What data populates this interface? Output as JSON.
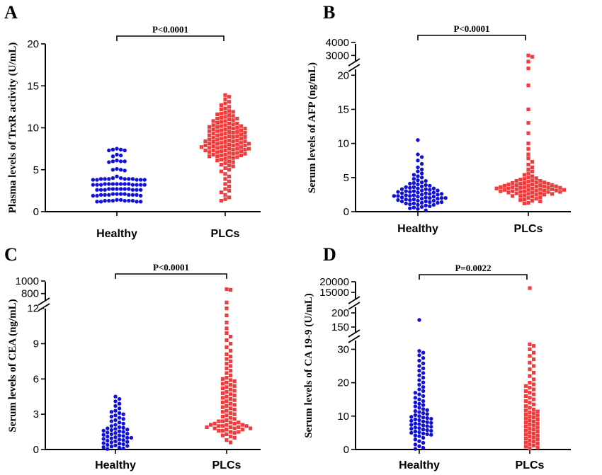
{
  "chart_data": [
    {
      "panel": "A",
      "type": "scatter",
      "categories": [
        "Healthy",
        "PLCs"
      ],
      "ylabel": "Plasma levels of TrxR activity  (U/mL)",
      "yticks": [
        0,
        5,
        10,
        15,
        20
      ],
      "ylim": [
        0,
        20
      ],
      "pvalue": "P<0.0001",
      "series": [
        {
          "values": [
            1.2,
            1.3,
            1.3,
            1.4,
            1.2,
            1.3,
            1.3,
            1.2,
            1.3,
            1.4,
            1.2,
            1.3,
            1.9,
            2.0,
            2.1,
            2.0,
            1.9,
            2.0,
            2.1,
            2.0,
            1.9,
            2.0,
            2.1,
            2.0,
            2.1,
            2.6,
            2.7,
            2.6,
            2.7,
            2.7,
            2.6,
            2.7,
            2.6,
            2.7,
            2.6,
            2.7,
            2.6,
            3.2,
            3.3,
            3.2,
            3.3,
            3.2,
            3.3,
            3.2,
            3.3,
            3.2,
            3.3,
            3.2,
            3.3,
            3.3,
            3.2,
            3.8,
            3.9,
            3.8,
            3.9,
            4.0,
            3.8,
            3.9,
            4.0,
            3.8,
            3.9,
            3.9,
            3.8,
            4.2,
            3.9,
            4.9,
            5.0,
            5.1,
            5.0,
            5.9,
            6.0,
            6.1,
            6.0,
            6.0,
            6.6,
            6.7,
            6.8,
            7.3,
            7.4,
            7.5,
            7.3,
            7.4
          ]
        },
        {
          "values": [
            1.3,
            1.5,
            1.7,
            2.0,
            2.3,
            2.5,
            2.7,
            3.0,
            3.3,
            3.6,
            3.9,
            4.2,
            4.5,
            4.8,
            5.0,
            5.2,
            5.4,
            5.5,
            5.6,
            5.8,
            5.9,
            6.0,
            6.1,
            6.2,
            6.3,
            6.4,
            6.5,
            6.5,
            6.6,
            6.6,
            6.7,
            6.7,
            6.8,
            6.8,
            6.9,
            6.9,
            7.0,
            7.0,
            7.1,
            7.1,
            7.2,
            7.2,
            7.3,
            7.3,
            7.3,
            7.4,
            7.4,
            7.5,
            7.5,
            7.5,
            7.6,
            7.6,
            7.7,
            7.7,
            7.7,
            7.8,
            7.8,
            7.9,
            7.9,
            7.9,
            8.0,
            8.0,
            8.1,
            8.1,
            8.1,
            8.2,
            8.2,
            8.3,
            8.3,
            8.4,
            8.4,
            8.4,
            8.5,
            8.5,
            8.6,
            8.6,
            8.7,
            8.7,
            8.8,
            8.8,
            8.9,
            8.9,
            9.0,
            9.0,
            9.1,
            9.1,
            9.2,
            9.2,
            9.3,
            9.3,
            9.4,
            9.4,
            9.5,
            9.5,
            9.6,
            9.6,
            9.7,
            9.7,
            9.8,
            9.8,
            9.9,
            9.9,
            10.0,
            10.0,
            10.1,
            10.1,
            10.2,
            10.2,
            10.3,
            10.3,
            10.4,
            10.5,
            10.5,
            10.6,
            10.7,
            10.8,
            10.8,
            10.9,
            11.0,
            11.1,
            11.1,
            11.2,
            11.3,
            11.4,
            11.5,
            11.6,
            11.7,
            11.8,
            11.9,
            12.0,
            12.2,
            12.3,
            12.5,
            12.7,
            12.9,
            13.1,
            13.4,
            13.7,
            13.9
          ]
        }
      ]
    },
    {
      "panel": "B",
      "type": "scatter",
      "categories": [
        "Healthy",
        "PLCs"
      ],
      "ylabel": "Serum levels of AFP  (ng/mL)",
      "yticks": [
        0,
        5,
        10,
        15,
        20,
        3000,
        4000
      ],
      "ylim": [
        0,
        4000
      ],
      "pvalue": "P<0.0001",
      "series": [
        {
          "values": [
            0.2,
            0.4,
            0.5,
            0.6,
            0.7,
            0.8,
            0.9,
            1.0,
            1.0,
            1.1,
            1.2,
            1.2,
            1.3,
            1.3,
            1.4,
            1.4,
            1.5,
            1.5,
            1.6,
            1.6,
            1.7,
            1.7,
            1.8,
            1.8,
            1.9,
            1.9,
            2.0,
            2.0,
            2.0,
            2.1,
            2.1,
            2.2,
            2.2,
            2.3,
            2.3,
            2.3,
            2.4,
            2.4,
            2.5,
            2.5,
            2.6,
            2.6,
            2.7,
            2.7,
            2.8,
            2.8,
            2.9,
            2.9,
            3.0,
            3.0,
            3.1,
            3.1,
            3.2,
            3.3,
            3.3,
            3.4,
            3.4,
            3.5,
            3.6,
            3.6,
            3.7,
            3.8,
            3.9,
            4.0,
            4.1,
            4.2,
            4.3,
            4.5,
            4.6,
            4.8,
            5.0,
            5.2,
            5.4,
            5.6,
            5.9,
            6.2,
            6.5,
            7.0,
            7.5,
            8.0,
            8.4,
            10.5
          ]
        },
        {
          "values": [
            1.2,
            1.3,
            1.5,
            1.6,
            1.7,
            1.8,
            1.9,
            2.0,
            2.1,
            2.2,
            2.3,
            2.3,
            2.4,
            2.5,
            2.5,
            2.6,
            2.6,
            2.7,
            2.7,
            2.8,
            2.8,
            2.9,
            2.9,
            2.9,
            3.0,
            3.0,
            3.0,
            3.1,
            3.1,
            3.1,
            3.2,
            3.2,
            3.2,
            3.3,
            3.3,
            3.3,
            3.4,
            3.4,
            3.4,
            3.5,
            3.5,
            3.5,
            3.6,
            3.6,
            3.6,
            3.7,
            3.7,
            3.7,
            3.8,
            3.8,
            3.9,
            3.9,
            3.9,
            4.0,
            4.0,
            4.1,
            4.1,
            4.2,
            4.2,
            4.3,
            4.3,
            4.4,
            4.5,
            4.5,
            4.6,
            4.7,
            4.8,
            4.9,
            5.0,
            5.2,
            5.4,
            5.6,
            5.9,
            6.2,
            6.5,
            6.9,
            7.3,
            7.8,
            8.4,
            9.2,
            10.0,
            11.5,
            13.0,
            15.0,
            18.5,
            21.0,
            23.0,
            2900,
            3000
          ]
        }
      ]
    },
    {
      "panel": "C",
      "type": "scatter",
      "categories": [
        "Healthy",
        "PLCs"
      ],
      "ylabel": "Serum levels of CEA  (ng/mL)",
      "yticks": [
        0,
        3,
        6,
        9,
        12,
        800,
        1000
      ],
      "ylim": [
        0,
        1000
      ],
      "pvalue": "P<0.0001",
      "series": [
        {
          "values": [
            0.05,
            0.1,
            0.15,
            0.2,
            0.25,
            0.3,
            0.35,
            0.4,
            0.45,
            0.5,
            0.55,
            0.6,
            0.65,
            0.7,
            0.75,
            0.8,
            0.85,
            0.9,
            0.95,
            1.0,
            1.0,
            1.05,
            1.1,
            1.15,
            1.2,
            1.25,
            1.3,
            1.35,
            1.4,
            1.45,
            1.5,
            1.55,
            1.6,
            1.65,
            1.7,
            1.75,
            1.8,
            1.85,
            1.9,
            2.0,
            2.1,
            2.2,
            2.3,
            2.4,
            2.5,
            2.6,
            2.7,
            2.8,
            2.9,
            3.0,
            3.1,
            3.2,
            3.3,
            3.5,
            3.7,
            3.9,
            4.1,
            4.3,
            4.5
          ]
        },
        {
          "values": [
            0.6,
            0.8,
            1.0,
            1.1,
            1.2,
            1.3,
            1.4,
            1.5,
            1.5,
            1.6,
            1.6,
            1.7,
            1.7,
            1.8,
            1.8,
            1.8,
            1.9,
            1.9,
            1.9,
            2.0,
            2.0,
            2.0,
            2.1,
            2.1,
            2.1,
            2.2,
            2.2,
            2.3,
            2.3,
            2.4,
            2.4,
            2.5,
            2.6,
            2.7,
            2.8,
            2.9,
            3.0,
            3.1,
            3.2,
            3.3,
            3.4,
            3.5,
            3.6,
            3.7,
            3.8,
            3.9,
            4.0,
            4.1,
            4.2,
            4.3,
            4.4,
            4.5,
            4.6,
            4.7,
            4.8,
            4.9,
            5.0,
            5.1,
            5.2,
            5.3,
            5.4,
            5.5,
            5.6,
            5.7,
            5.8,
            5.9,
            6.0,
            6.1,
            6.3,
            6.5,
            6.7,
            6.9,
            7.1,
            7.3,
            7.5,
            7.7,
            7.9,
            8.1,
            8.4,
            8.7,
            9.0,
            9.3,
            9.6,
            9.9,
            10.3,
            10.8,
            11.4,
            12.0,
            12.5,
            860,
            870
          ]
        }
      ]
    },
    {
      "panel": "D",
      "type": "scatter",
      "categories": [
        "Healthy",
        "PLCs"
      ],
      "ylabel": "Serum levels of CA 19-9  (U/mL)",
      "yticks": [
        0,
        10,
        20,
        30,
        150,
        200,
        15000,
        20000
      ],
      "ylim": [
        0,
        20000
      ],
      "pvalue": "P=0.0022",
      "series": [
        {
          "values": [
            0.2,
            0.5,
            1.0,
            1.5,
            2.0,
            2.5,
            3.0,
            3.5,
            4.0,
            4.2,
            4.4,
            4.6,
            4.8,
            5.0,
            5.2,
            5.4,
            5.6,
            5.8,
            6.0,
            6.2,
            6.4,
            6.6,
            6.8,
            7.0,
            7.2,
            7.4,
            7.6,
            7.8,
            8.0,
            8.2,
            8.4,
            8.6,
            8.8,
            9.0,
            9.2,
            9.4,
            9.6,
            9.8,
            10.0,
            10.3,
            10.6,
            10.9,
            11.2,
            11.5,
            11.8,
            12.1,
            12.5,
            12.9,
            13.3,
            13.7,
            14.1,
            14.5,
            15.0,
            15.5,
            16.0,
            16.5,
            17.0,
            17.5,
            18.0,
            18.7,
            19.4,
            20.1,
            20.8,
            21.5,
            22.2,
            22.9,
            23.6,
            24.3,
            25.0,
            25.8,
            26.6,
            27.4,
            28.2,
            29.0,
            29.5,
            175
          ]
        },
        {
          "values": [
            0.3,
            0.6,
            0.9,
            1.2,
            1.5,
            1.8,
            2.1,
            2.4,
            2.7,
            3.0,
            3.3,
            3.6,
            3.9,
            4.2,
            4.5,
            4.8,
            5.1,
            5.4,
            5.7,
            6.0,
            6.3,
            6.6,
            6.9,
            7.2,
            7.5,
            7.8,
            8.1,
            8.4,
            8.7,
            9.0,
            9.3,
            9.6,
            9.9,
            10.2,
            10.5,
            10.8,
            11.1,
            11.4,
            11.7,
            12.0,
            12.5,
            13.0,
            13.5,
            14.0,
            14.5,
            15.0,
            15.5,
            16.0,
            16.5,
            17.0,
            17.5,
            18.0,
            18.5,
            19.0,
            19.5,
            20.0,
            21.0,
            22.0,
            23.0,
            24.0,
            25.0,
            26.0,
            27.0,
            28.0,
            29.0,
            30.0,
            31.0,
            31.5,
            17000
          ]
        }
      ]
    }
  ],
  "colors": {
    "healthy": "#1010d8",
    "plcs": "#f03c3c"
  }
}
